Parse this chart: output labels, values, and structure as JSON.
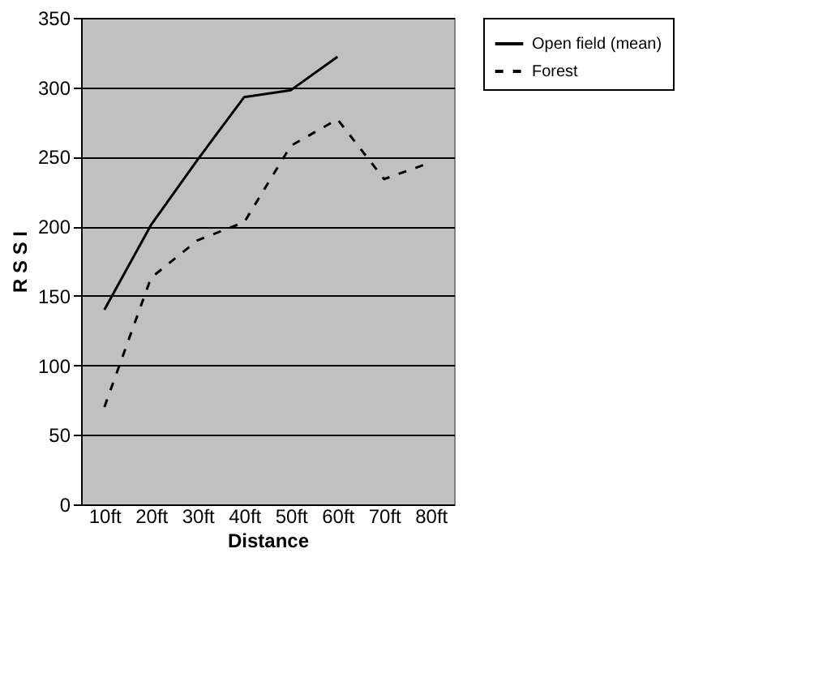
{
  "chart_data": {
    "type": "line",
    "xlabel": "Distance",
    "ylabel": "R S S I",
    "categories": [
      "10ft",
      "20ft",
      "30ft",
      "40ft",
      "50ft",
      "60ft",
      "70ft",
      "80ft"
    ],
    "series": [
      {
        "name": "Open field (mean)",
        "color": "#000000",
        "line_style": "solid",
        "values": [
          140,
          201,
          248,
          293,
          298,
          322,
          null,
          null
        ]
      },
      {
        "name": "Forest",
        "color": "#000000",
        "line_style": "dashed",
        "values": [
          70,
          163,
          190,
          203,
          258,
          277,
          234,
          246
        ]
      }
    ],
    "ylim": [
      0,
      350
    ],
    "yticks": [
      0,
      50,
      100,
      150,
      200,
      250,
      300,
      350
    ],
    "grid": "y",
    "legend": "right",
    "marker": "none"
  }
}
